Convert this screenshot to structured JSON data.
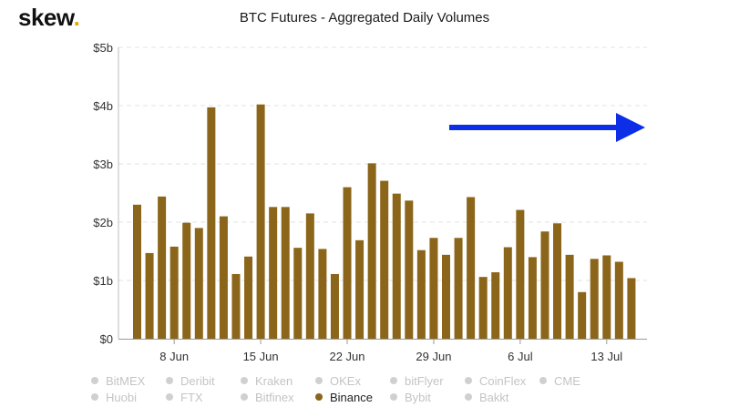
{
  "logo": {
    "text": "skew",
    "dot": "."
  },
  "colors": {
    "bar": "#8b6519",
    "arrow": "#0b2ee6",
    "grid": "#e3e3e3",
    "legend_inactive": "#c4c4c4",
    "legend_active": "#222222",
    "logo_dot": "#e6a800"
  },
  "legend": {
    "rows": [
      [
        {
          "label": "BitMEX",
          "active": false
        },
        {
          "label": "Deribit",
          "active": false
        },
        {
          "label": "Kraken",
          "active": false
        },
        {
          "label": "OKEx",
          "active": false
        },
        {
          "label": "bitFlyer",
          "active": false
        },
        {
          "label": "CoinFlex",
          "active": false
        },
        {
          "label": "CME",
          "active": false
        }
      ],
      [
        {
          "label": "Huobi",
          "active": false
        },
        {
          "label": "FTX",
          "active": false
        },
        {
          "label": "Bitfinex",
          "active": false
        },
        {
          "label": "Binance",
          "active": true
        },
        {
          "label": "Bybit",
          "active": false
        },
        {
          "label": "Bakkt",
          "active": false
        }
      ]
    ]
  },
  "chart_data": {
    "type": "bar",
    "title": "BTC Futures - Aggregated Daily Volumes",
    "xlabel": "",
    "ylabel": "",
    "ylim": [
      0,
      5
    ],
    "yticks": [
      0,
      1,
      2,
      3,
      4,
      5
    ],
    "yticklabels": [
      "$0",
      "$1b",
      "$2b",
      "$3b",
      "$4b",
      "$5b"
    ],
    "grid": true,
    "legend_position": "bottom",
    "xticks": [
      {
        "label": "8 Jun",
        "index": 3
      },
      {
        "label": "15 Jun",
        "index": 10
      },
      {
        "label": "22 Jun",
        "index": 17
      },
      {
        "label": "29 Jun",
        "index": 24
      },
      {
        "label": "6 Jul",
        "index": 31
      },
      {
        "label": "13 Jul",
        "index": 38
      }
    ],
    "series": [
      {
        "name": "Binance",
        "values": [
          2.3,
          1.47,
          2.44,
          1.58,
          1.99,
          1.9,
          3.97,
          2.1,
          1.11,
          1.41,
          4.02,
          2.26,
          2.26,
          1.56,
          2.15,
          1.54,
          1.11,
          2.6,
          1.69,
          3.01,
          2.71,
          2.49,
          2.37,
          1.52,
          1.73,
          1.44,
          1.73,
          2.43,
          1.06,
          1.14,
          1.57,
          2.21,
          1.4,
          1.84,
          1.98,
          1.44,
          0.8,
          1.37,
          1.43,
          1.32,
          1.04
        ]
      }
    ]
  }
}
